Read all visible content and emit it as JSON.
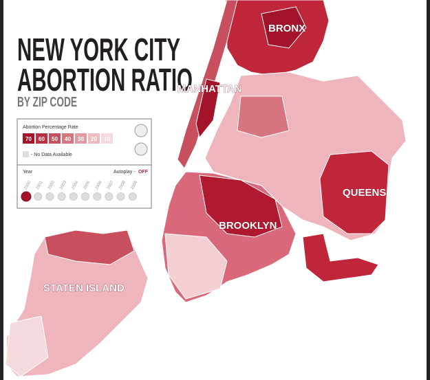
{
  "header": {
    "title_line1": "NEW YORK CITY",
    "title_line2": "ABORTION RATIO",
    "subtitle": "BY ZIP CODE"
  },
  "legend": {
    "title": "Abortion Percentage Rate",
    "bins": [
      {
        "value": 70,
        "color": "#a3142a"
      },
      {
        "value": 60,
        "color": "#b93043"
      },
      {
        "value": 50,
        "color": "#c84f5e"
      },
      {
        "value": 40,
        "color": "#d67480"
      },
      {
        "value": 30,
        "color": "#e39aa2"
      },
      {
        "value": 20,
        "color": "#ecbcc1"
      },
      {
        "value": 10,
        "color": "#f4dadd"
      }
    ],
    "no_data": "- No Data Available"
  },
  "timeline": {
    "label": "Year",
    "autoplay_label": "Autoplay -",
    "autoplay_state": "OFF",
    "years": [
      "2000",
      "2001",
      "2002",
      "2003",
      "2004",
      "2005",
      "2006",
      "2007",
      "2008",
      "2009"
    ],
    "selected": 0
  },
  "map": {
    "boroughs": [
      "BRONX",
      "MANHATTAN",
      "QUEENS",
      "BROOKLYN",
      "STATEN ISLAND"
    ]
  }
}
